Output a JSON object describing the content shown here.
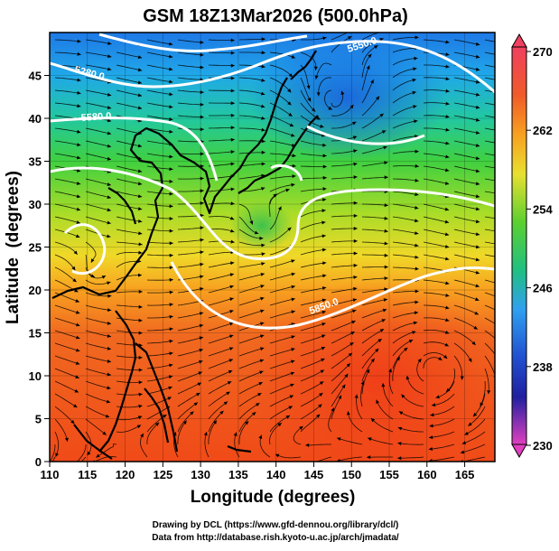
{
  "title": "GSM 18Z13Mar2026 (500.0hPa)",
  "axes": {
    "xlabel": "Longitude (degrees)",
    "ylabel": "Latitude  (degrees)",
    "x_ticks": [
      "110",
      "115",
      "120",
      "125",
      "130",
      "135",
      "140",
      "145",
      "150",
      "155",
      "160",
      "165"
    ],
    "y_ticks": [
      "0",
      "5",
      "10",
      "15",
      "20",
      "25",
      "30",
      "35",
      "40",
      "45"
    ]
  },
  "colorbar": {
    "labels": [
      "270",
      "262",
      "254",
      "246",
      "238",
      "230"
    ],
    "stops": [
      "#f04060",
      "#f05a2a",
      "#f8a020",
      "#e8e030",
      "#5cd030",
      "#20c080",
      "#30a0f0",
      "#2050d0",
      "#2020a0",
      "#e040c0"
    ]
  },
  "contour_labels": [
    "5280.0",
    "5580.0",
    "5550.0",
    "5850.0"
  ],
  "credits": {
    "line1": "Drawing by DCL (https://www.gfd-dennou.org/library/dcl/)",
    "line2": "Data from http://database.rish.kyoto-u.ac.jp/arch/jmadata/"
  },
  "colors": {
    "background": "#ffffff",
    "frame": "#000000",
    "contour": "#ffffff"
  }
}
